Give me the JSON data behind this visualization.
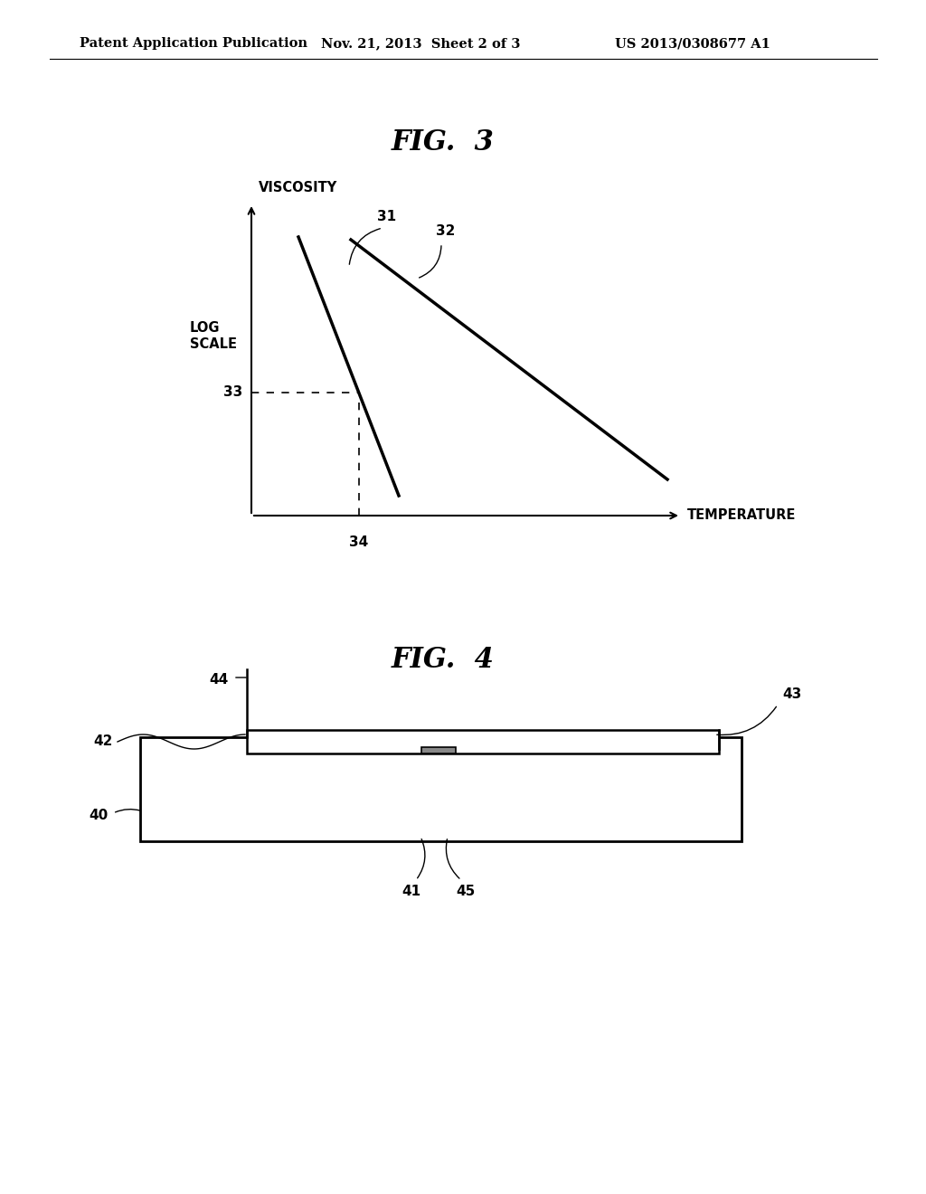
{
  "bg_color": "#ffffff",
  "header_left": "Patent Application Publication",
  "header_mid": "Nov. 21, 2013  Sheet 2 of 3",
  "header_right": "US 2013/0308677 A1",
  "fig3_title": "FIG.  3",
  "fig4_title": "FIG.  4",
  "viscosity_label": "VISCOSITY",
  "log_scale_label": "LOG\nSCALE",
  "temperature_label": "TEMPERATURE",
  "label_31": "31",
  "label_32": "32",
  "label_33": "33",
  "label_34": "34",
  "label_40": "40",
  "label_41": "41",
  "label_42": "42",
  "label_43": "43",
  "label_44": "44",
  "label_45": "45"
}
